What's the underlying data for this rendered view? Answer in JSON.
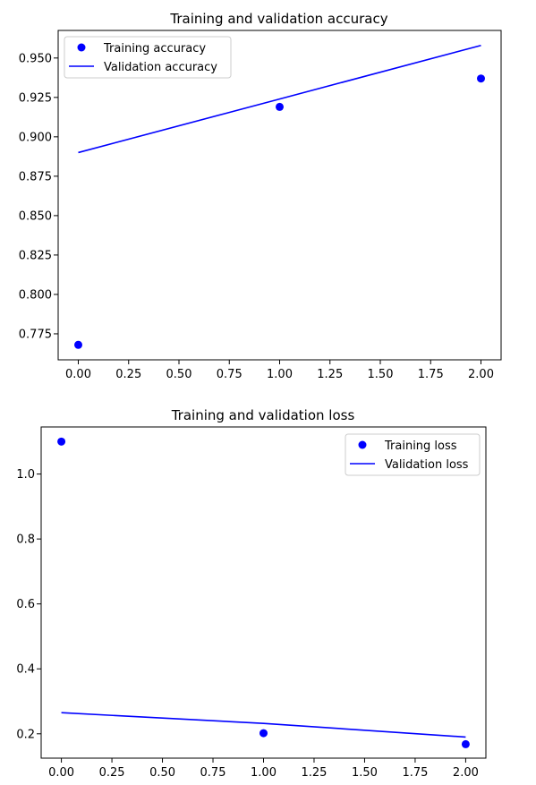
{
  "colors": {
    "series": "#0000ff"
  },
  "chart_data": [
    {
      "type": "line",
      "title": "Training and validation accuracy",
      "xlabel": "",
      "ylabel": "",
      "x": [
        0,
        1,
        2
      ],
      "xlim": [
        -0.1,
        2.1
      ],
      "ylim": [
        0.7585,
        0.9675
      ],
      "xticks": [
        0.0,
        0.25,
        0.5,
        0.75,
        1.0,
        1.25,
        1.5,
        1.75,
        2.0
      ],
      "xtick_labels": [
        "0.00",
        "0.25",
        "0.50",
        "0.75",
        "1.00",
        "1.25",
        "1.50",
        "1.75",
        "2.00"
      ],
      "yticks": [
        0.775,
        0.8,
        0.825,
        0.85,
        0.875,
        0.9,
        0.925,
        0.95
      ],
      "ytick_labels": [
        "0.775",
        "0.800",
        "0.825",
        "0.850",
        "0.875",
        "0.900",
        "0.925",
        "0.950"
      ],
      "grid": false,
      "legend": "top-left",
      "series": [
        {
          "name": "Training accuracy",
          "style": "points",
          "values": [
            0.768,
            0.919,
            0.937
          ]
        },
        {
          "name": "Validation accuracy",
          "style": "line",
          "values": [
            0.89,
            0.924,
            0.958
          ]
        }
      ]
    },
    {
      "type": "line",
      "title": "Training and validation loss",
      "xlabel": "",
      "ylabel": "",
      "x": [
        0,
        1,
        2
      ],
      "xlim": [
        -0.1,
        2.1
      ],
      "ylim": [
        0.125,
        1.145
      ],
      "xticks": [
        0.0,
        0.25,
        0.5,
        0.75,
        1.0,
        1.25,
        1.5,
        1.75,
        2.0
      ],
      "xtick_labels": [
        "0.00",
        "0.25",
        "0.50",
        "0.75",
        "1.00",
        "1.25",
        "1.50",
        "1.75",
        "2.00"
      ],
      "yticks": [
        0.2,
        0.4,
        0.6,
        0.8,
        1.0
      ],
      "ytick_labels": [
        "0.2",
        "0.4",
        "0.6",
        "0.8",
        "1.0"
      ],
      "grid": false,
      "legend": "top-right",
      "series": [
        {
          "name": "Training loss",
          "style": "points",
          "values": [
            1.1,
            0.202,
            0.168
          ]
        },
        {
          "name": "Validation loss",
          "style": "line",
          "values": [
            0.265,
            0.232,
            0.19
          ]
        }
      ]
    }
  ]
}
